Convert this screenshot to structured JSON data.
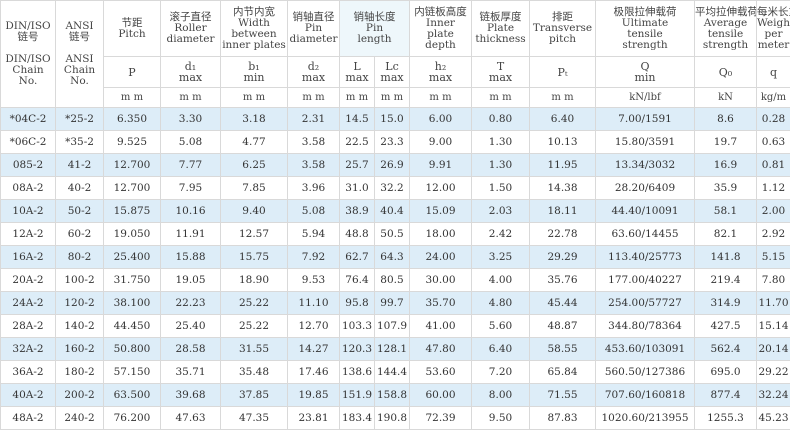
{
  "header": {
    "din_iso": [
      "DIN/ISO",
      "链号",
      "",
      "DIN/ISO",
      "Chain",
      "No."
    ],
    "ansi": [
      "ANSI",
      "链号",
      "",
      "ANSI",
      "Chain",
      "No."
    ],
    "columns": [
      {
        "title": [
          "节距",
          "Pitch"
        ],
        "symbol": [
          "P"
        ],
        "unit": "m m"
      },
      {
        "title": [
          "滚子直径",
          "Roller",
          "diameter"
        ],
        "symbol": [
          "d₁",
          "max"
        ],
        "unit": "m m"
      },
      {
        "title": [
          "内节内宽",
          "Width",
          "between",
          "inner plates"
        ],
        "symbol": [
          "b₁",
          "min"
        ],
        "unit": "m m"
      },
      {
        "title": [
          "销轴直径",
          "Pin",
          "diameter"
        ],
        "symbol": [
          "d₂",
          "max"
        ],
        "unit": "m m"
      },
      {
        "title": [
          "内链板高度",
          "Inner",
          "plate",
          "depth"
        ],
        "symbol": [
          "h₂",
          "max"
        ],
        "unit": "m m"
      },
      {
        "title": [
          "链板厚度",
          "Plate",
          "thickness"
        ],
        "symbol": [
          "T",
          "max"
        ],
        "unit": "m m"
      },
      {
        "title": [
          "排距",
          "Transverse",
          "pitch"
        ],
        "symbol": [
          "Pₜ"
        ],
        "unit": "m m"
      },
      {
        "title": [
          "极限拉伸载荷",
          "Ultimate",
          "tensile",
          "strength"
        ],
        "symbol": [
          "Q",
          "min"
        ],
        "unit": "kN/lbf"
      },
      {
        "title": [
          "平均拉伸载荷",
          "Average",
          "tensile",
          "strength"
        ],
        "symbol": [
          "Q₀"
        ],
        "unit": "kN"
      },
      {
        "title": [
          "每米长重",
          "Weight",
          "per",
          "meter"
        ],
        "symbol": [
          "q"
        ],
        "unit": "kg/m"
      }
    ],
    "pin_length": {
      "title": [
        "销轴长度",
        "Pin",
        "length"
      ],
      "sub": [
        {
          "symbol": [
            "L",
            "max"
          ],
          "unit": "m m"
        },
        {
          "symbol": [
            "Lc",
            "max"
          ],
          "unit": "m m"
        }
      ]
    }
  },
  "rows": [
    [
      "*04C-2",
      "*25-2",
      "6.350",
      "3.30",
      "3.18",
      "2.31",
      "14.5",
      "15.0",
      "6.00",
      "0.80",
      "6.40",
      "7.00/1591",
      "8.6",
      "0.28"
    ],
    [
      "*06C-2",
      "*35-2",
      "9.525",
      "5.08",
      "4.77",
      "3.58",
      "22.5",
      "23.3",
      "9.00",
      "1.30",
      "10.13",
      "15.80/3591",
      "19.7",
      "0.63"
    ],
    [
      "085-2",
      "41-2",
      "12.700",
      "7.77",
      "6.25",
      "3.58",
      "25.7",
      "26.9",
      "9.91",
      "1.30",
      "11.95",
      "13.34/3032",
      "16.9",
      "0.81"
    ],
    [
      "08A-2",
      "40-2",
      "12.700",
      "7.95",
      "7.85",
      "3.96",
      "31.0",
      "32.2",
      "12.00",
      "1.50",
      "14.38",
      "28.20/6409",
      "35.9",
      "1.12"
    ],
    [
      "10A-2",
      "50-2",
      "15.875",
      "10.16",
      "9.40",
      "5.08",
      "38.9",
      "40.4",
      "15.09",
      "2.03",
      "18.11",
      "44.40/10091",
      "58.1",
      "2.00"
    ],
    [
      "12A-2",
      "60-2",
      "19.050",
      "11.91",
      "12.57",
      "5.94",
      "48.8",
      "50.5",
      "18.00",
      "2.42",
      "22.78",
      "63.60/14455",
      "82.1",
      "2.92"
    ],
    [
      "16A-2",
      "80-2",
      "25.400",
      "15.88",
      "15.75",
      "7.92",
      "62.7",
      "64.3",
      "24.00",
      "3.25",
      "29.29",
      "113.40/25773",
      "141.8",
      "5.15"
    ],
    [
      "20A-2",
      "100-2",
      "31.750",
      "19.05",
      "18.90",
      "9.53",
      "76.4",
      "80.5",
      "30.00",
      "4.00",
      "35.76",
      "177.00/40227",
      "219.4",
      "7.80"
    ],
    [
      "24A-2",
      "120-2",
      "38.100",
      "22.23",
      "25.22",
      "11.10",
      "95.8",
      "99.7",
      "35.70",
      "4.80",
      "45.44",
      "254.00/57727",
      "314.9",
      "11.70"
    ],
    [
      "28A-2",
      "140-2",
      "44.450",
      "25.40",
      "25.22",
      "12.70",
      "103.3",
      "107.9",
      "41.00",
      "5.60",
      "48.87",
      "344.80/78364",
      "427.5",
      "15.14"
    ],
    [
      "32A-2",
      "160-2",
      "50.800",
      "28.58",
      "31.55",
      "14.27",
      "120.3",
      "128.1",
      "47.80",
      "6.40",
      "58.55",
      "453.60/103091",
      "562.4",
      "20.14"
    ],
    [
      "36A-2",
      "180-2",
      "57.150",
      "35.71",
      "35.48",
      "17.46",
      "138.6",
      "144.4",
      "53.60",
      "7.20",
      "65.84",
      "560.50/127386",
      "695.0",
      "29.22"
    ],
    [
      "40A-2",
      "200-2",
      "63.500",
      "39.68",
      "37.85",
      "19.85",
      "151.9",
      "158.8",
      "60.00",
      "8.00",
      "71.55",
      "707.60/160818",
      "877.4",
      "32.24"
    ],
    [
      "48A-2",
      "240-2",
      "76.200",
      "47.63",
      "47.35",
      "23.81",
      "183.4",
      "190.8",
      "72.39",
      "9.50",
      "87.83",
      "1020.60/213955",
      "1255.3",
      "45.23"
    ]
  ]
}
